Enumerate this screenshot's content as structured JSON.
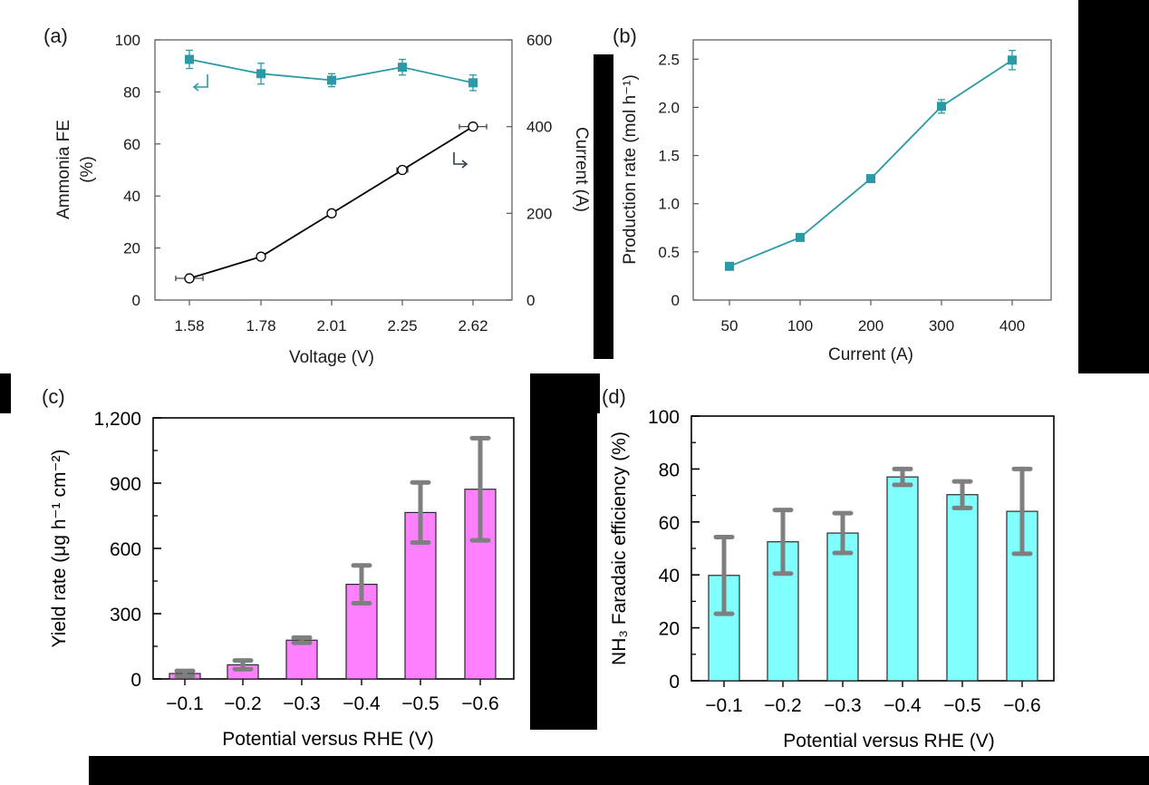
{
  "chart_data": [
    {
      "panel": "(a)",
      "type": "line",
      "x_label": "Voltage (V)",
      "y_left_label": "Ammonia FE (%)",
      "y_left_label_lines": [
        "Ammonia FE",
        "(%)"
      ],
      "y_right_label": "Current (A)",
      "categories": [
        "1.58",
        "1.78",
        "2.01",
        "2.25",
        "2.62"
      ],
      "y_left_range": [
        0,
        100
      ],
      "y_left_ticks": [
        "0",
        "20",
        "40",
        "60",
        "80",
        "100"
      ],
      "y_right_range": [
        0,
        600
      ],
      "y_right_ticks": [
        "0",
        "200",
        "400",
        "600"
      ],
      "fe_color": "#2a9aa6",
      "current_color": "#000000",
      "series": [
        {
          "axis": "left",
          "marker": "square",
          "values": [
            92.5,
            87,
            84.5,
            89.5,
            83.5
          ],
          "errors": [
            3.5,
            4,
            2.5,
            3,
            3
          ]
        },
        {
          "axis": "right",
          "marker": "open-circle",
          "values": [
            50,
            100,
            200,
            300,
            400
          ],
          "x_errors": [
            0.05,
            0.01,
            0.01,
            0.02,
            0.05
          ]
        }
      ]
    },
    {
      "panel": "(b)",
      "type": "line",
      "x_label": "Current (A)",
      "y_label": "Production rate (mol h⁻¹)",
      "categories": [
        "50",
        "100",
        "200",
        "300",
        "400"
      ],
      "y_range": [
        0,
        2.7
      ],
      "y_ticks": [
        "0",
        "0.5",
        "1.0",
        "1.5",
        "2.0",
        "2.5"
      ],
      "color": "#2a9aa6",
      "values": [
        0.35,
        0.65,
        1.26,
        2.01,
        2.49
      ],
      "errors": [
        0.02,
        0.02,
        0.03,
        0.07,
        0.1
      ]
    },
    {
      "panel": "(c)",
      "type": "bar",
      "x_label": "Potential versus RHE (V)",
      "y_label": "Yield rate (μg h⁻¹ cm⁻²)",
      "categories": [
        "−0.1",
        "−0.2",
        "−0.3",
        "−0.4",
        "−0.5",
        "−0.6"
      ],
      "y_range": [
        0,
        1200
      ],
      "y_ticks": [
        "0",
        "300",
        "600",
        "900",
        "1,200"
      ],
      "bar_color": "#ff80ff",
      "error_color": "#7f7f7f",
      "values": [
        25,
        65,
        178,
        435,
        765,
        872
      ],
      "errors": [
        12,
        20,
        12,
        87,
        138,
        235
      ]
    },
    {
      "panel": "(d)",
      "type": "bar",
      "x_label": "Potential versus RHE (V)",
      "y_label": "NH₃ Faradaic efficiency (%)",
      "categories": [
        "−0.1",
        "−0.2",
        "−0.3",
        "−0.4",
        "−0.5",
        "−0.6"
      ],
      "y_range": [
        0,
        100
      ],
      "y_ticks": [
        "0",
        "20",
        "40",
        "60",
        "80",
        "100"
      ],
      "bar_color": "#80ffff",
      "error_color": "#7f7f7f",
      "values": [
        39.8,
        52.5,
        55.8,
        77,
        70.3,
        64
      ],
      "errors": [
        14.5,
        12,
        7.5,
        3,
        5,
        16
      ]
    }
  ]
}
